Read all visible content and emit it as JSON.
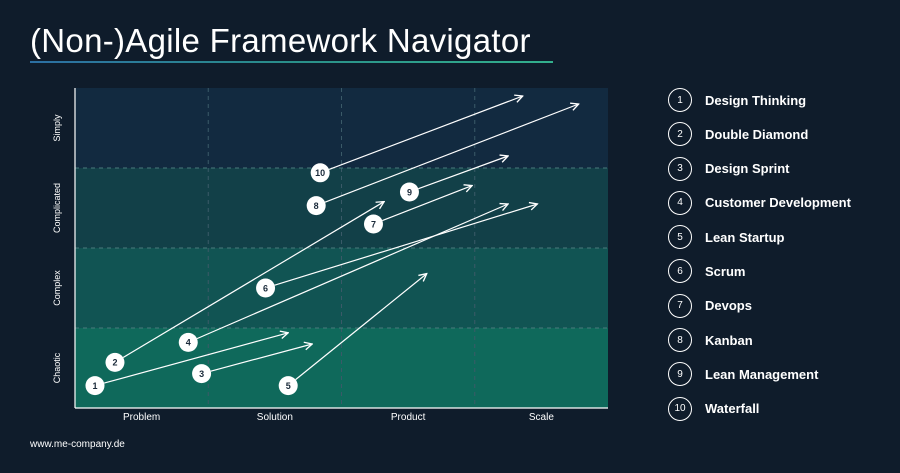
{
  "title": "(Non-)Agile Framework Navigator",
  "footer": "www.me-company.de",
  "colors": {
    "background": "#0f1c2b",
    "band_simply": "#122a40",
    "band_complicated": "#124048",
    "band_complex": "#115453",
    "band_chaotic": "#0f695b",
    "arrow": "#ffffff",
    "underline_start": "#2c6fa3",
    "underline_end": "#33b08d"
  },
  "axes": {
    "x": [
      "Problem",
      "Solution",
      "Product",
      "Scale"
    ],
    "y": [
      "Simply",
      "Complicated",
      "Complex",
      "Chaotic"
    ]
  },
  "nodes": [
    {
      "num": "1",
      "sx": 0.15,
      "sy": 3.72,
      "ex": 1.6,
      "ey": 3.06
    },
    {
      "num": "2",
      "sx": 0.3,
      "sy": 3.43,
      "ex": 2.32,
      "ey": 1.42
    },
    {
      "num": "3",
      "sx": 0.95,
      "sy": 3.57,
      "ex": 1.78,
      "ey": 3.2
    },
    {
      "num": "4",
      "sx": 0.85,
      "sy": 3.18,
      "ex": 3.25,
      "ey": 1.45
    },
    {
      "num": "5",
      "sx": 1.6,
      "sy": 3.72,
      "ex": 2.64,
      "ey": 2.32
    },
    {
      "num": "6",
      "sx": 1.43,
      "sy": 2.5,
      "ex": 3.47,
      "ey": 1.45
    },
    {
      "num": "7",
      "sx": 2.24,
      "sy": 1.7,
      "ex": 2.98,
      "ey": 1.22
    },
    {
      "num": "8",
      "sx": 1.81,
      "sy": 1.47,
      "ex": 3.78,
      "ey": 0.2
    },
    {
      "num": "9",
      "sx": 2.51,
      "sy": 1.3,
      "ex": 3.25,
      "ey": 0.85
    },
    {
      "num": "10",
      "sx": 1.84,
      "sy": 1.06,
      "ex": 3.36,
      "ey": 0.1
    }
  ],
  "legend": [
    {
      "num": "1",
      "label": "Design Thinking"
    },
    {
      "num": "2",
      "label": "Double Diamond"
    },
    {
      "num": "3",
      "label": "Design Sprint"
    },
    {
      "num": "4",
      "label": "Customer Development"
    },
    {
      "num": "5",
      "label": "Lean Startup"
    },
    {
      "num": "6",
      "label": "Scrum"
    },
    {
      "num": "7",
      "label": "Devops"
    },
    {
      "num": "8",
      "label": "Kanban"
    },
    {
      "num": "9",
      "label": "Lean Management"
    },
    {
      "num": "10",
      "label": "Waterfall"
    }
  ]
}
